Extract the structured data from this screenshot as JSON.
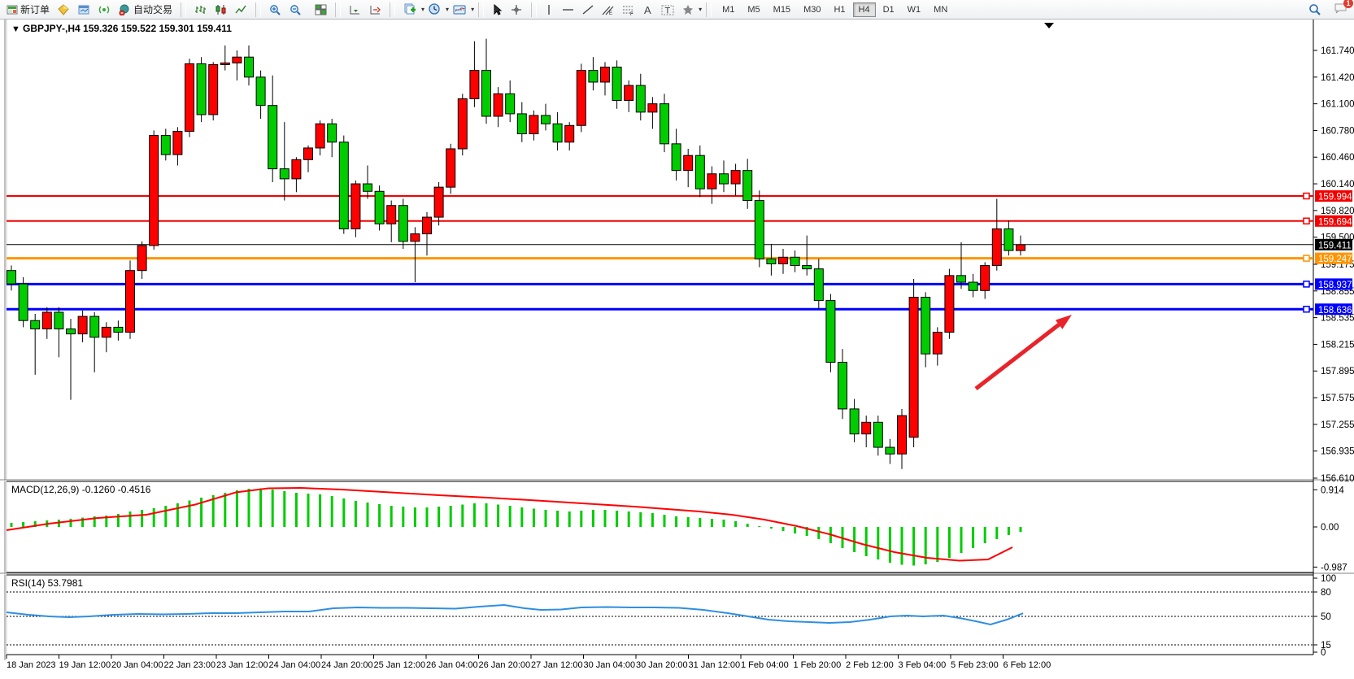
{
  "toolbar": {
    "new_order_label": "新订单",
    "auto_trading_label": "自动交易",
    "left_icons_before": [
      "order-grid-icon"
    ],
    "left_icons_mid": [
      "history-icon",
      "market-watch-icon",
      "signal-icon",
      "autotrade-icon"
    ],
    "chart_type_icons": [
      "bar-chart-icon",
      "candlestick-icon",
      "line-chart-icon"
    ],
    "zoom_icons": [
      "zoom-in-icon",
      "zoom-out-icon"
    ],
    "window_icons": [
      "tile-windows-icon"
    ],
    "scroll_icons": [
      "auto-scroll-icon",
      "chart-shift-icon"
    ],
    "dropdown_icons": [
      "new-chart-icon",
      "periods-icon",
      "templates-icon"
    ],
    "pointer_icons": [
      "cursor-icon",
      "crosshair-icon"
    ],
    "draw_icons": [
      "vline-icon",
      "hline-icon",
      "trendline-icon",
      "channel-icon",
      "fibonacci-icon",
      "text-icon",
      "label-icon",
      "shapes-icon"
    ],
    "timeframes": [
      "M1",
      "M5",
      "M15",
      "M30",
      "H1",
      "H4",
      "D1",
      "W1",
      "MN"
    ],
    "active_timeframe": "H4",
    "right_icons": [
      "search-icon",
      "chat-icon"
    ],
    "chat_badge_count": "1"
  },
  "chart_header": {
    "collapse_marker": "▼",
    "symbol_period": "GBPJPY-,H4",
    "ohlc_text": "159.326 159.522 159.301 159.411"
  },
  "indicator_labels": {
    "macd": "MACD(12,26,9) -0.1260 -0.4516",
    "rsi": "RSI(14) 53.7981"
  },
  "colors": {
    "bull": "#ff0000",
    "bear": "#00cc00",
    "wick": "#000000",
    "macd_hist": "#00cc00",
    "macd_signal": "#ff0000",
    "rsi_line": "#2e8fe0",
    "line_red": "#f40000",
    "line_orange": "#ff9400",
    "line_blue": "#0000ff",
    "current_price_bg": "#000000",
    "axis_text": "#000000",
    "arrow": "#e8232a"
  },
  "chart_data": {
    "type": "candlestick",
    "title": "GBPJPY-,H4",
    "current_bar": {
      "open": "159.326",
      "high": "159.522",
      "low": "159.301",
      "close": "159.411"
    },
    "price_axis_ticks": [
      "161.740",
      "161.420",
      "161.100",
      "160.780",
      "160.460",
      "160.140",
      "159.820",
      "159.500",
      "159.175",
      "158.855",
      "158.535",
      "158.215",
      "157.895",
      "157.575",
      "157.255",
      "156.935",
      "156.610"
    ],
    "time_labels": [
      "18 Jan 2023",
      "19 Jan 12:00",
      "20 Jan 04:00",
      "22 Jan 23:00",
      "23 Jan 12:00",
      "24 Jan 04:00",
      "24 Jan 20:00",
      "25 Jan 12:00",
      "26 Jan 04:00",
      "26 Jan 20:00",
      "27 Jan 12:00",
      "30 Jan 04:00",
      "30 Jan 20:00",
      "31 Jan 12:00",
      "1 Feb 04:00",
      "1 Feb 20:00",
      "2 Feb 12:00",
      "3 Feb 04:00",
      "5 Feb 23:00",
      "6 Feb 12:00"
    ],
    "horizontal_lines": [
      {
        "price": 159.994,
        "label": "159.994",
        "color": "#f40000",
        "width": 2,
        "marker": true
      },
      {
        "price": 159.694,
        "label": "159.694",
        "color": "#f40000",
        "width": 2,
        "marker": true
      },
      {
        "price": 159.411,
        "label": "159.411",
        "color": "#000000",
        "width": 1,
        "marker": false
      },
      {
        "price": 159.247,
        "label": "159.247",
        "color": "#ff9400",
        "width": 3,
        "marker": true
      },
      {
        "price": 158.937,
        "label": "158.937",
        "color": "#0000ff",
        "width": 3,
        "marker": true
      },
      {
        "price": 158.636,
        "label": "158.636",
        "color": "#0000ff",
        "width": 3,
        "marker": true
      }
    ],
    "candles_ohlc": [
      [
        159.1,
        159.16,
        158.86,
        158.94
      ],
      [
        158.94,
        159.02,
        158.42,
        158.5
      ],
      [
        158.5,
        158.58,
        157.85,
        158.4
      ],
      [
        158.4,
        158.66,
        158.28,
        158.6
      ],
      [
        158.6,
        158.66,
        158.06,
        158.4
      ],
      [
        158.4,
        158.52,
        157.55,
        158.34
      ],
      [
        158.34,
        158.62,
        158.24,
        158.55
      ],
      [
        158.55,
        158.6,
        157.88,
        158.3
      ],
      [
        158.3,
        158.48,
        158.12,
        158.42
      ],
      [
        158.42,
        158.5,
        158.26,
        158.36
      ],
      [
        158.36,
        159.22,
        158.28,
        159.1
      ],
      [
        159.1,
        159.45,
        159.0,
        159.4
      ],
      [
        159.4,
        160.78,
        159.35,
        160.72
      ],
      [
        160.72,
        160.8,
        160.42,
        160.49
      ],
      [
        160.49,
        160.82,
        160.36,
        160.77
      ],
      [
        160.77,
        161.64,
        160.7,
        161.58
      ],
      [
        161.58,
        161.66,
        160.88,
        160.97
      ],
      [
        160.97,
        161.6,
        160.9,
        161.57
      ],
      [
        161.57,
        161.8,
        161.5,
        161.59
      ],
      [
        161.59,
        161.74,
        161.38,
        161.66
      ],
      [
        161.66,
        161.8,
        161.32,
        161.42
      ],
      [
        161.42,
        161.5,
        160.92,
        161.08
      ],
      [
        161.08,
        161.44,
        160.16,
        160.32
      ],
      [
        160.32,
        160.88,
        159.94,
        160.2
      ],
      [
        160.2,
        160.46,
        160.04,
        160.43
      ],
      [
        160.43,
        160.6,
        160.28,
        160.57
      ],
      [
        160.57,
        160.9,
        160.48,
        160.86
      ],
      [
        160.86,
        160.92,
        160.46,
        160.64
      ],
      [
        160.64,
        160.72,
        159.54,
        159.6
      ],
      [
        159.6,
        160.18,
        159.5,
        160.14
      ],
      [
        160.14,
        160.36,
        159.96,
        160.05
      ],
      [
        160.05,
        160.12,
        159.58,
        159.66
      ],
      [
        159.66,
        159.94,
        159.44,
        159.88
      ],
      [
        159.88,
        159.96,
        159.36,
        159.45
      ],
      [
        159.45,
        159.62,
        158.96,
        159.54
      ],
      [
        159.54,
        159.8,
        159.28,
        159.74
      ],
      [
        159.74,
        160.16,
        159.64,
        160.1
      ],
      [
        160.1,
        160.62,
        160.02,
        160.56
      ],
      [
        160.56,
        161.22,
        160.48,
        161.16
      ],
      [
        161.16,
        161.85,
        161.06,
        161.5
      ],
      [
        161.5,
        161.88,
        160.86,
        160.95
      ],
      [
        160.95,
        161.3,
        160.82,
        161.22
      ],
      [
        161.22,
        161.38,
        160.88,
        160.98
      ],
      [
        160.98,
        161.12,
        160.64,
        160.74
      ],
      [
        160.74,
        161.02,
        160.66,
        160.96
      ],
      [
        160.96,
        161.1,
        160.78,
        160.86
      ],
      [
        160.86,
        161.0,
        160.54,
        160.64
      ],
      [
        160.64,
        160.88,
        160.54,
        160.84
      ],
      [
        160.84,
        161.58,
        160.76,
        161.5
      ],
      [
        161.5,
        161.66,
        161.26,
        161.36
      ],
      [
        161.36,
        161.6,
        161.2,
        161.54
      ],
      [
        161.54,
        161.62,
        161.04,
        161.14
      ],
      [
        161.14,
        161.38,
        161.0,
        161.32
      ],
      [
        161.32,
        161.46,
        160.9,
        161.0
      ],
      [
        161.0,
        161.18,
        160.8,
        161.1
      ],
      [
        161.1,
        161.22,
        160.52,
        160.62
      ],
      [
        160.62,
        160.8,
        160.18,
        160.3
      ],
      [
        160.3,
        160.56,
        160.1,
        160.48
      ],
      [
        160.48,
        160.6,
        159.98,
        160.08
      ],
      [
        160.08,
        160.35,
        159.9,
        160.26
      ],
      [
        160.26,
        160.42,
        160.04,
        160.14
      ],
      [
        160.14,
        160.38,
        160.0,
        160.3
      ],
      [
        160.3,
        160.44,
        159.84,
        159.94
      ],
      [
        159.94,
        160.06,
        159.14,
        159.24
      ],
      [
        159.24,
        159.42,
        159.04,
        159.18
      ],
      [
        159.18,
        159.36,
        159.06,
        159.26
      ],
      [
        159.26,
        159.34,
        159.08,
        159.16
      ],
      [
        159.16,
        159.52,
        159.04,
        159.12
      ],
      [
        159.12,
        159.24,
        158.64,
        158.74
      ],
      [
        158.74,
        158.82,
        157.88,
        158.0
      ],
      [
        158.0,
        158.16,
        157.32,
        157.44
      ],
      [
        157.44,
        157.56,
        157.04,
        157.14
      ],
      [
        157.14,
        157.36,
        156.98,
        157.28
      ],
      [
        157.28,
        157.36,
        156.88,
        156.98
      ],
      [
        156.98,
        157.08,
        156.78,
        156.9
      ],
      [
        156.9,
        157.44,
        156.72,
        157.36
      ],
      [
        157.1,
        159.0,
        156.98,
        158.78
      ],
      [
        158.78,
        158.84,
        157.94,
        158.1
      ],
      [
        158.1,
        158.42,
        157.96,
        158.36
      ],
      [
        158.36,
        159.12,
        158.28,
        159.04
      ],
      [
        159.04,
        159.44,
        158.88,
        158.96
      ],
      [
        158.96,
        159.06,
        158.78,
        158.86
      ],
      [
        158.86,
        159.2,
        158.76,
        159.16
      ],
      [
        159.16,
        159.96,
        159.1,
        159.6
      ],
      [
        159.6,
        159.7,
        159.28,
        159.34
      ],
      [
        159.34,
        159.52,
        159.28,
        159.41
      ]
    ],
    "indicators": [
      {
        "type": "macd",
        "label": "MACD(12,26,9) -0.1260 -0.4516",
        "axis_ticks": [
          "0.914",
          "0.00",
          "-0.987"
        ],
        "histogram": [
          0.1,
          0.12,
          0.14,
          0.16,
          0.18,
          0.2,
          0.23,
          0.26,
          0.28,
          0.32,
          0.38,
          0.42,
          0.46,
          0.52,
          0.58,
          0.65,
          0.72,
          0.78,
          0.84,
          0.9,
          0.94,
          0.95,
          0.92,
          0.88,
          0.84,
          0.82,
          0.8,
          0.76,
          0.7,
          0.64,
          0.6,
          0.56,
          0.52,
          0.5,
          0.48,
          0.48,
          0.5,
          0.52,
          0.55,
          0.58,
          0.58,
          0.55,
          0.52,
          0.48,
          0.45,
          0.42,
          0.4,
          0.38,
          0.4,
          0.42,
          0.42,
          0.4,
          0.38,
          0.36,
          0.34,
          0.3,
          0.26,
          0.24,
          0.22,
          0.2,
          0.18,
          0.14,
          0.08,
          0.02,
          -0.04,
          -0.1,
          -0.16,
          -0.22,
          -0.3,
          -0.4,
          -0.52,
          -0.62,
          -0.72,
          -0.8,
          -0.88,
          -0.93,
          -0.95,
          -0.92,
          -0.86,
          -0.76,
          -0.64,
          -0.52,
          -0.4,
          -0.3,
          -0.2,
          -0.126
        ],
        "signal_points": [
          [
            8,
            -0.08
          ],
          [
            60,
            0.08
          ],
          [
            120,
            0.22
          ],
          [
            180,
            0.3
          ],
          [
            240,
            0.55
          ],
          [
            290,
            0.85
          ],
          [
            330,
            0.95
          ],
          [
            370,
            0.96
          ],
          [
            420,
            0.92
          ],
          [
            480,
            0.85
          ],
          [
            540,
            0.78
          ],
          [
            600,
            0.72
          ],
          [
            660,
            0.65
          ],
          [
            700,
            0.6
          ],
          [
            740,
            0.55
          ],
          [
            780,
            0.5
          ],
          [
            820,
            0.44
          ],
          [
            860,
            0.38
          ],
          [
            900,
            0.3
          ],
          [
            940,
            0.18
          ],
          [
            980,
            0.02
          ],
          [
            1020,
            -0.18
          ],
          [
            1060,
            -0.42
          ],
          [
            1100,
            -0.62
          ],
          [
            1140,
            -0.76
          ],
          [
            1180,
            -0.83
          ],
          [
            1215,
            -0.8
          ],
          [
            1245,
            -0.5
          ]
        ]
      },
      {
        "type": "rsi",
        "label": "RSI(14) 53.7981",
        "axis_ticks": [
          "100",
          "80",
          "50",
          "15",
          "0"
        ],
        "levels": [
          80,
          50,
          15
        ],
        "points": [
          [
            8,
            55
          ],
          [
            35,
            52
          ],
          [
            60,
            50
          ],
          [
            85,
            49
          ],
          [
            110,
            50
          ],
          [
            140,
            52
          ],
          [
            170,
            53
          ],
          [
            200,
            52.5
          ],
          [
            230,
            53
          ],
          [
            260,
            54
          ],
          [
            290,
            54
          ],
          [
            320,
            55
          ],
          [
            350,
            56
          ],
          [
            380,
            56
          ],
          [
            410,
            60
          ],
          [
            440,
            61
          ],
          [
            470,
            60.5
          ],
          [
            500,
            60.5
          ],
          [
            530,
            60
          ],
          [
            560,
            59.5
          ],
          [
            590,
            62
          ],
          [
            620,
            64
          ],
          [
            645,
            60
          ],
          [
            665,
            58
          ],
          [
            690,
            58.5
          ],
          [
            715,
            61
          ],
          [
            745,
            61.5
          ],
          [
            775,
            61
          ],
          [
            805,
            61
          ],
          [
            835,
            60.5
          ],
          [
            865,
            58
          ],
          [
            895,
            54
          ],
          [
            920,
            50
          ],
          [
            945,
            46
          ],
          [
            970,
            44
          ],
          [
            995,
            43
          ],
          [
            1020,
            42
          ],
          [
            1045,
            43
          ],
          [
            1070,
            46
          ],
          [
            1095,
            50
          ],
          [
            1115,
            51
          ],
          [
            1135,
            50
          ],
          [
            1160,
            51
          ],
          [
            1180,
            48
          ],
          [
            1200,
            44
          ],
          [
            1218,
            40
          ],
          [
            1238,
            46
          ],
          [
            1258,
            53.8
          ]
        ]
      }
    ],
    "annotation_arrow": {
      "from": [
        1200,
        478
      ],
      "to": [
        1318,
        387
      ]
    }
  }
}
